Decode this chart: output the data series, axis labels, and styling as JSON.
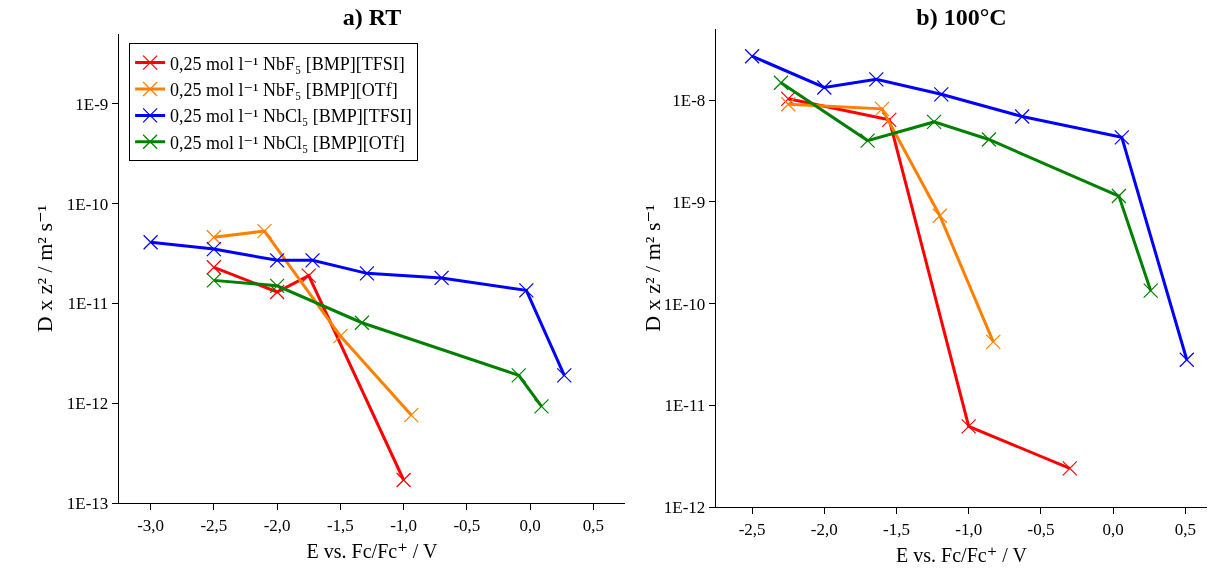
{
  "chart_data": [
    {
      "type": "line",
      "title": "a) RT",
      "xlabel": "E vs. Fc/Fc⁺ / V",
      "ylabel": "D x z² / m² s⁻¹",
      "log": "y",
      "grid": false,
      "legend": "top left",
      "marker": "cross",
      "line_style": "solid",
      "xlim": [
        -3.25,
        0.75
      ],
      "xticks": [
        {
          "value": -3,
          "label": "-3,0"
        },
        {
          "value": -2.5,
          "label": "-2,5"
        },
        {
          "value": -2,
          "label": "-2,0"
        },
        {
          "value": -1.5,
          "label": "-1,5"
        },
        {
          "value": -1,
          "label": "-1,0"
        },
        {
          "value": -0.5,
          "label": "-0,5"
        },
        {
          "value": 0,
          "label": "0,0"
        },
        {
          "value": 0.5,
          "label": "0,5"
        }
      ],
      "ylim": [
        1e-13,
        5e-09
      ],
      "yticks": [
        {
          "value": 1e-13,
          "label": "1E-13"
        },
        {
          "value": 1e-12,
          "label": "1E-12"
        },
        {
          "value": 1e-11,
          "label": "1E-11"
        },
        {
          "value": 1e-10,
          "label": "1E-10"
        },
        {
          "value": 1e-09,
          "label": "1E-9"
        }
      ],
      "series": [
        {
          "name": "0,25 mol l⁻¹ NbF₅ [BMP][TFSI]",
          "color": "#ff0000",
          "x": [
            -2.5,
            -2.0,
            -1.75,
            -1.0
          ],
          "values": [
            2.3e-11,
            1.3e-11,
            1.9e-11,
            1.7e-13
          ]
        },
        {
          "name": "0,25 mol l⁻¹ NbF₅ [BMP][OTf]",
          "color": "#ff8000",
          "x": [
            -2.5,
            -2.1,
            -1.5,
            -0.94
          ],
          "values": [
            4.6e-11,
            5.3e-11,
            4.7e-12,
            7.6e-13
          ]
        },
        {
          "name": "0,25 mol l⁻¹ NbCl₅ [BMP][TFSI]",
          "color": "#0000ff",
          "x": [
            -3.0,
            -2.5,
            -2.0,
            -1.72,
            -1.29,
            -0.7,
            -0.03,
            0.27
          ],
          "values": [
            4.1e-11,
            3.5e-11,
            2.7e-11,
            2.7e-11,
            2e-11,
            1.8e-11,
            1.35e-11,
            1.9e-12
          ]
        },
        {
          "name": "0,25 mol l⁻¹ NbCl₅ [BMP][OTf]",
          "color": "#008000",
          "x": [
            -2.5,
            -2.0,
            -1.33,
            -0.09,
            0.09
          ],
          "values": [
            1.7e-11,
            1.5e-11,
            6.4e-12,
            1.9e-12,
            9.3e-13
          ]
        }
      ]
    },
    {
      "type": "line",
      "title": "b) 100°C",
      "xlabel": "E vs. Fc/Fc⁺ / V",
      "ylabel": "D x z² / m² s⁻¹",
      "log": "y",
      "grid": false,
      "legend": false,
      "marker": "cross",
      "line_style": "solid",
      "xlim": [
        -2.75,
        0.65
      ],
      "xticks": [
        {
          "value": -2.5,
          "label": "-2,5"
        },
        {
          "value": -2,
          "label": "-2,0"
        },
        {
          "value": -1.5,
          "label": "-1,5"
        },
        {
          "value": -1,
          "label": "-1,0"
        },
        {
          "value": -0.5,
          "label": "-0,5"
        },
        {
          "value": 0,
          "label": "0,0"
        },
        {
          "value": 0.5,
          "label": "0,5"
        }
      ],
      "ylim": [
        1e-12,
        5e-08
      ],
      "yticks": [
        {
          "value": 1e-12,
          "label": "1E-12"
        },
        {
          "value": 1e-11,
          "label": "1E-11"
        },
        {
          "value": 1e-10,
          "label": "1E-10"
        },
        {
          "value": 1e-09,
          "label": "1E-9"
        },
        {
          "value": 1e-08,
          "label": "1E-8"
        }
      ],
      "series": [
        {
          "color": "#ff0000",
          "x": [
            -2.25,
            -1.55,
            -1.0,
            -0.3
          ],
          "values": [
            1.03e-08,
            6.4e-09,
            6.2e-12,
            2.4e-12
          ]
        },
        {
          "color": "#ff8000",
          "x": [
            -2.25,
            -1.6,
            -1.2,
            -0.83
          ],
          "values": [
            9.1e-09,
            8.2e-09,
            7.3e-10,
            4.2e-11
          ]
        },
        {
          "color": "#0000ff",
          "x": [
            -2.5,
            -2.0,
            -1.64,
            -1.19,
            -0.63,
            0.06,
            0.51
          ],
          "values": [
            2.7e-08,
            1.33e-08,
            1.6e-08,
            1.14e-08,
            6.9e-09,
            4.3e-09,
            2.8e-11
          ]
        },
        {
          "color": "#008000",
          "x": [
            -2.3,
            -1.7,
            -1.24,
            -0.86,
            0.04,
            0.26
          ],
          "values": [
            1.48e-08,
            4e-09,
            6.1e-09,
            4.1e-09,
            1.14e-09,
            1.34e-10
          ]
        }
      ]
    }
  ]
}
